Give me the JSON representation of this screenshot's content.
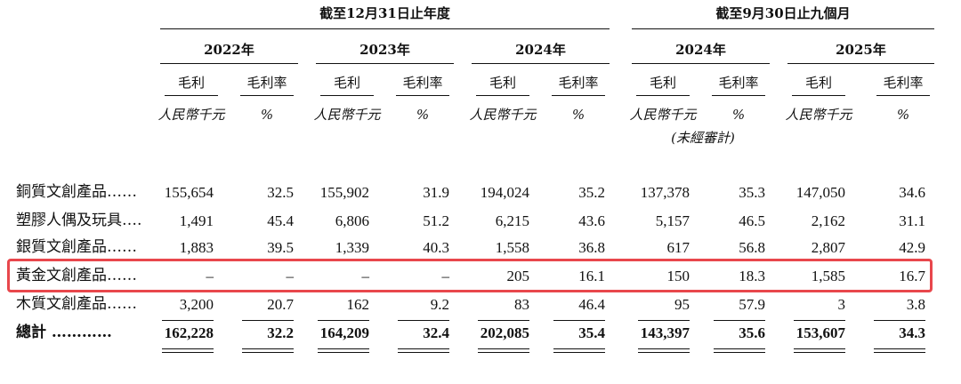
{
  "header": {
    "group_year": "截至12月31日止年度",
    "group_nine": "截至9月30日止九個月",
    "years": [
      "2022年",
      "2023年",
      "2024年",
      "2024年",
      "2025年"
    ],
    "col_gross": "毛利",
    "col_margin": "毛利率",
    "unit_rmb": "人民幣千元",
    "unit_pct": "%",
    "unaudited": "(未經審計)"
  },
  "rows": [
    {
      "label": "銅質文創產品……",
      "values": [
        "155,654",
        "32.5",
        "155,902",
        "31.9",
        "194,024",
        "35.2",
        "137,378",
        "35.3",
        "147,050",
        "34.6"
      ]
    },
    {
      "label": "塑膠人偶及玩具….",
      "values": [
        "1,491",
        "45.4",
        "6,806",
        "51.2",
        "6,215",
        "43.6",
        "5,157",
        "46.5",
        "2,162",
        "31.1"
      ]
    },
    {
      "label": "銀質文創產品……",
      "values": [
        "1,883",
        "39.5",
        "1,339",
        "40.3",
        "1,558",
        "36.8",
        "617",
        "56.8",
        "2,807",
        "42.9"
      ]
    },
    {
      "label": "黃金文創產品……",
      "values": [
        "–",
        "–",
        "–",
        "–",
        "205",
        "16.1",
        "150",
        "18.3",
        "1,585",
        "16.7"
      ]
    },
    {
      "label": "木質文創產品……",
      "values": [
        "3,200",
        "20.7",
        "162",
        "9.2",
        "83",
        "46.4",
        "95",
        "57.9",
        "3",
        "3.8"
      ]
    },
    {
      "label": "總計 …………",
      "values": [
        "162,228",
        "32.2",
        "164,209",
        "32.4",
        "202,085",
        "35.4",
        "143,397",
        "35.6",
        "153,607",
        "34.3"
      ]
    }
  ],
  "highlight_color": "#e8474c"
}
